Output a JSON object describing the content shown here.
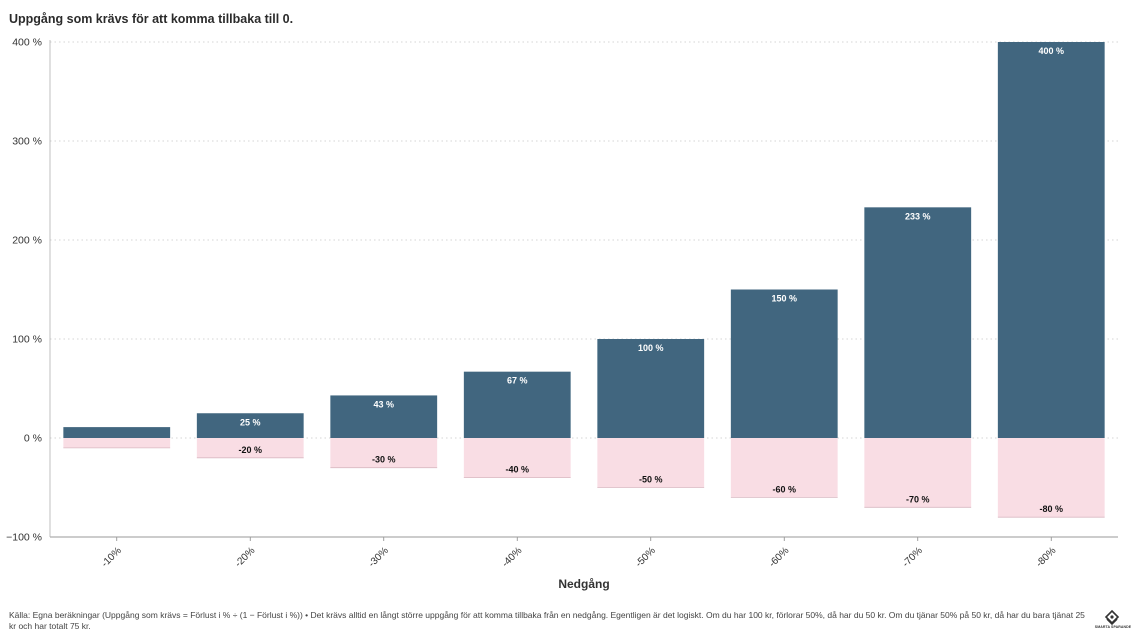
{
  "header": {
    "title": "Uppgång som krävs för att komma tillbaka till 0."
  },
  "chart_data": {
    "type": "bar",
    "title": "Uppgång som krävs för att komma tillbaka till 0.",
    "xlabel": "Nedgång",
    "ylabel": "",
    "ylim": [
      -100,
      400
    ],
    "yticks": [
      -100,
      0,
      100,
      200,
      300,
      400
    ],
    "ytick_labels": [
      "−100 %",
      "0 %",
      "100 %",
      "200 %",
      "300 %",
      "400 %"
    ],
    "categories": [
      "-10%",
      "-20%",
      "-30%",
      "-40%",
      "-50%",
      "-60%",
      "-70%",
      "-80%"
    ],
    "series": [
      {
        "name": "Uppgång som krävs",
        "color": "#41667f",
        "values": [
          11,
          25,
          43,
          67,
          100,
          150,
          233,
          400
        ],
        "labels": [
          "",
          "25 %",
          "43 %",
          "67 %",
          "100 %",
          "150 %",
          "233 %",
          "400 %"
        ]
      },
      {
        "name": "Nedgång",
        "color": "#f9dde4",
        "values": [
          -10,
          -20,
          -30,
          -40,
          -50,
          -60,
          -70,
          -80
        ],
        "labels": [
          "",
          "-20 %",
          "-30 %",
          "-40 %",
          "-50 %",
          "-60 %",
          "-70 %",
          "-80 %"
        ]
      }
    ],
    "grid": true,
    "legend": "none"
  },
  "footer": {
    "source": "Källa: Egna beräkningar (Uppgång som krävs = Förlust i % ÷ (1 − Förlust i %)) • Det krävs alltid en långt större uppgång för att komma tillbaka från en nedgång. Egentligen är det logiskt. Om du har 100 kr, förlorar 50%, då har du 50 kr. Om du tjänar 50% på 50 kr, då har du bara tjänat 25 kr och har totalt 75 kr.",
    "logo_text": "SMARTA SPARANDE"
  }
}
